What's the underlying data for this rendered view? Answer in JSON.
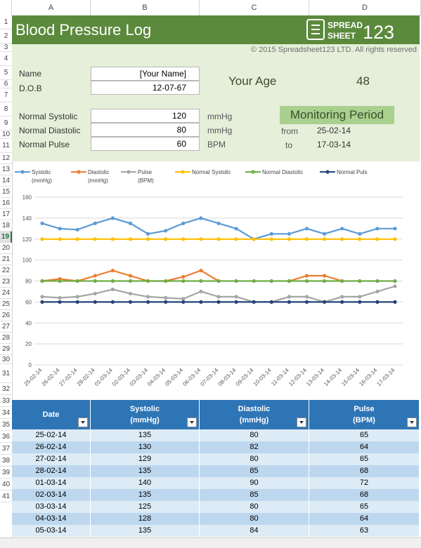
{
  "columns": [
    "A",
    "B",
    "C",
    "D"
  ],
  "rows": [
    "1",
    "2",
    "3",
    "4",
    "5",
    "6",
    "7",
    "8",
    "9",
    "10",
    "11",
    "12",
    "13",
    "14",
    "15",
    "16",
    "17",
    "18",
    "19",
    "20",
    "21",
    "22",
    "23",
    "24",
    "25",
    "26",
    "27",
    "28",
    "29",
    "30",
    "31",
    "32",
    "33",
    "34",
    "35",
    "36",
    "37",
    "38",
    "39",
    "40",
    "41"
  ],
  "selected_row": "19",
  "title": "Blood Pressure Log",
  "logo": {
    "top": "SPREAD",
    "bottom": "SHEET",
    "num": "123"
  },
  "copyright": "© 2015 Spreadsheet123 LTD. All rights reserved",
  "profile": {
    "name_label": "Name",
    "name_value": "[Your Name]",
    "dob_label": "D.O.B",
    "dob_value": "12-07-67",
    "age_label": "Your Age",
    "age_value": "48"
  },
  "normals": {
    "systolic_label": "Normal Systolic",
    "systolic_value": "120",
    "systolic_unit": "mmHg",
    "diastolic_label": "Normal Diastolic",
    "diastolic_value": "80",
    "diastolic_unit": "mmHg",
    "pulse_label": "Normal Pulse",
    "pulse_value": "60",
    "pulse_unit": "BPM"
  },
  "monitoring": {
    "title": "Monitoring Period",
    "from_label": "from",
    "from_value": "25-02-14",
    "to_label": "to",
    "to_value": "17-03-14"
  },
  "chart_data": {
    "type": "line",
    "categories": [
      "25-02-14",
      "26-02-14",
      "27-02-14",
      "28-02-14",
      "01-03-14",
      "02-03-14",
      "03-03-14",
      "04-03-14",
      "05-03-14",
      "06-03-14",
      "07-03-14",
      "08-03-14",
      "09-03-14",
      "10-03-14",
      "11-03-14",
      "12-03-14",
      "13-03-14",
      "14-03-14",
      "15-03-14",
      "16-03-14",
      "17-03-14"
    ],
    "ylim": [
      0,
      160
    ],
    "yticks": [
      0,
      20,
      40,
      60,
      80,
      100,
      120,
      140,
      160
    ],
    "grid": true,
    "legend_position": "top",
    "series": [
      {
        "name": "Systolic (mmHg)",
        "color": "#5b9bd5",
        "values": [
          135,
          130,
          129,
          135,
          140,
          135,
          125,
          128,
          135,
          140,
          135,
          130,
          120,
          125,
          125,
          130,
          125,
          130,
          125,
          130,
          130
        ]
      },
      {
        "name": "Diastolic (mmHg)",
        "color": "#ed7d31",
        "values": [
          80,
          82,
          80,
          85,
          90,
          85,
          80,
          80,
          84,
          90,
          80,
          null,
          null,
          null,
          80,
          85,
          85,
          80,
          null,
          null,
          null
        ]
      },
      {
        "name": "Pulse (BPM)",
        "color": "#a5a5a5",
        "values": [
          65,
          64,
          65,
          68,
          72,
          68,
          65,
          64,
          63,
          70,
          65,
          65,
          60,
          60,
          65,
          65,
          60,
          65,
          65,
          70,
          75
        ]
      },
      {
        "name": "Normal Systolic",
        "color": "#ffc000",
        "values": [
          120,
          120,
          120,
          120,
          120,
          120,
          120,
          120,
          120,
          120,
          120,
          120,
          120,
          120,
          120,
          120,
          120,
          120,
          120,
          120,
          120
        ]
      },
      {
        "name": "Normal Diastolic",
        "color": "#70ad47",
        "values": [
          80,
          80,
          80,
          80,
          80,
          80,
          80,
          80,
          80,
          80,
          80,
          80,
          80,
          80,
          80,
          80,
          80,
          80,
          80,
          80,
          80
        ]
      },
      {
        "name": "Normal Puls",
        "color": "#264478",
        "values": [
          60,
          60,
          60,
          60,
          60,
          60,
          60,
          60,
          60,
          60,
          60,
          60,
          60,
          60,
          60,
          60,
          60,
          60,
          60,
          60,
          60
        ]
      }
    ]
  },
  "table": {
    "headers": [
      "Date",
      "Systolic\n(mmHg)",
      "Diastolic\n(mmHg)",
      "Pulse\n(BPM)"
    ],
    "rows": [
      [
        "25-02-14",
        "135",
        "80",
        "65"
      ],
      [
        "26-02-14",
        "130",
        "82",
        "64"
      ],
      [
        "27-02-14",
        "129",
        "80",
        "65"
      ],
      [
        "28-02-14",
        "135",
        "85",
        "68"
      ],
      [
        "01-03-14",
        "140",
        "90",
        "72"
      ],
      [
        "02-03-14",
        "135",
        "85",
        "68"
      ],
      [
        "03-03-14",
        "125",
        "80",
        "65"
      ],
      [
        "04-03-14",
        "128",
        "80",
        "64"
      ],
      [
        "05-03-14",
        "135",
        "84",
        "63"
      ]
    ]
  }
}
